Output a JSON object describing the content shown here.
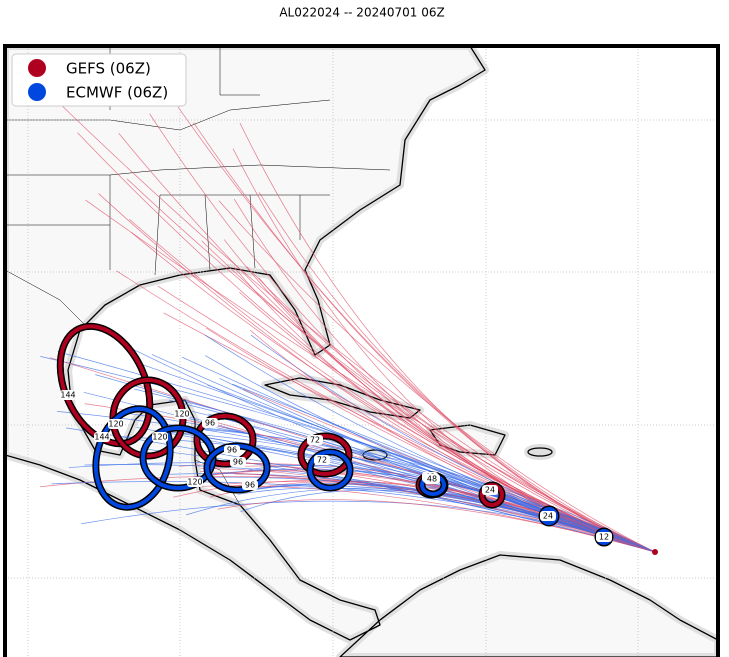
{
  "header": {
    "title": "AL022024 -- 20240701 06Z"
  },
  "legend": [
    {
      "label": "GEFS (06Z)"
    },
    {
      "label": "ECMWF (06Z)"
    }
  ],
  "gefs_labels": [
    "144",
    "120",
    "120",
    "96",
    "96",
    "72",
    "48",
    "24"
  ],
  "ecmwf_labels": [
    "144",
    "120",
    "120",
    "96",
    "96",
    "72",
    "48",
    "24",
    "12"
  ]
}
